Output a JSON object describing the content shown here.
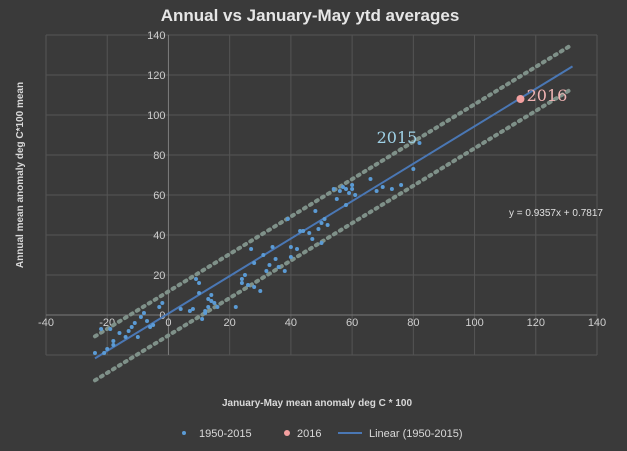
{
  "chart_data": {
    "type": "scatter",
    "title": "Annual vs  January-May ytd averages",
    "xlabel": "January-May mean anomaly deg C * 100",
    "ylabel": "Annual mean  anomaly deg C*100 mean",
    "xlim": [
      -40,
      140
    ],
    "ylim": [
      -20,
      140
    ],
    "x_ticks": [
      "-40",
      "-20",
      "0",
      "20",
      "40",
      "60",
      "80",
      "100",
      "120",
      "140"
    ],
    "y_ticks": [
      "140",
      "120",
      "100",
      "80",
      "60",
      "40",
      "20",
      "0"
    ],
    "grid": true,
    "legend_position": "bottom",
    "equation_label": "y = 0.9357x + 0.7817",
    "colors": {
      "series_1950_2015": "#5b9bd5",
      "series_2016": "#f4a0a0",
      "trendline": "#4a77b4",
      "bounds": "#7f9189",
      "ann2015": "#9fd1e6",
      "ann2016": "#f0b4b4"
    },
    "series": [
      {
        "name": "1950-2015",
        "points": [
          [
            -24,
            -19
          ],
          [
            -22,
            -7
          ],
          [
            -21,
            -19
          ],
          [
            -20,
            -17
          ],
          [
            -19,
            -7
          ],
          [
            -18,
            -15
          ],
          [
            -18,
            -13
          ],
          [
            -16,
            -9
          ],
          [
            -14,
            -11
          ],
          [
            -13,
            -8
          ],
          [
            -12,
            -6
          ],
          [
            -11,
            -4
          ],
          [
            -10,
            -11
          ],
          [
            -9,
            -1
          ],
          [
            -8,
            1
          ],
          [
            -7,
            -3
          ],
          [
            -6,
            -6
          ],
          [
            -5,
            -5
          ],
          [
            -3,
            4
          ],
          [
            -2,
            6
          ],
          [
            4,
            3
          ],
          [
            7,
            2
          ],
          [
            8,
            3
          ],
          [
            9,
            18
          ],
          [
            10,
            16
          ],
          [
            10,
            11
          ],
          [
            11,
            -2
          ],
          [
            12,
            2
          ],
          [
            12,
            1
          ],
          [
            13,
            4
          ],
          [
            13,
            8
          ],
          [
            14,
            7
          ],
          [
            14,
            10
          ],
          [
            15,
            6
          ],
          [
            16,
            4
          ],
          [
            22,
            4
          ],
          [
            24,
            18
          ],
          [
            24,
            16
          ],
          [
            25,
            20
          ],
          [
            26,
            15
          ],
          [
            27,
            33
          ],
          [
            28,
            26
          ],
          [
            28,
            14
          ],
          [
            30,
            12
          ],
          [
            31,
            30
          ],
          [
            32,
            22
          ],
          [
            33,
            25
          ],
          [
            34,
            34
          ],
          [
            35,
            28
          ],
          [
            36,
            24
          ],
          [
            38,
            22
          ],
          [
            39,
            48
          ],
          [
            40,
            34
          ],
          [
            40,
            29
          ],
          [
            42,
            33
          ],
          [
            43,
            42
          ],
          [
            44,
            42
          ],
          [
            46,
            41
          ],
          [
            47,
            38
          ],
          [
            48,
            52
          ],
          [
            49,
            43
          ],
          [
            50,
            46
          ],
          [
            50,
            36
          ],
          [
            51,
            48
          ],
          [
            52,
            45
          ],
          [
            54,
            63
          ],
          [
            55,
            58
          ],
          [
            56,
            62
          ],
          [
            57,
            64
          ],
          [
            58,
            63
          ],
          [
            58,
            55
          ],
          [
            59,
            61
          ],
          [
            60,
            63
          ],
          [
            60,
            65
          ],
          [
            61,
            60
          ],
          [
            66,
            68
          ],
          [
            68,
            62
          ],
          [
            70,
            64
          ],
          [
            73,
            63
          ],
          [
            76,
            65
          ],
          [
            80,
            73
          ],
          [
            82,
            86
          ]
        ]
      },
      {
        "name": "2016",
        "points": [
          [
            115,
            108
          ]
        ]
      }
    ],
    "trendline": {
      "name": "Linear (1950-2015)",
      "slope": 0.9357,
      "intercept": 0.7817,
      "x_range": [
        -24,
        132
      ]
    },
    "bounds_lines": [
      {
        "x_range": [
          -24,
          132
        ],
        "offset": 11
      },
      {
        "x_range": [
          -24,
          132
        ],
        "offset": -11
      }
    ],
    "annotations": [
      {
        "text": "2015",
        "x": 68,
        "y": 86
      },
      {
        "text": "2016",
        "x": 117,
        "y": 107
      }
    ],
    "legend_entries": [
      "1950-2015",
      "2016",
      "Linear (1950-2015)"
    ]
  }
}
